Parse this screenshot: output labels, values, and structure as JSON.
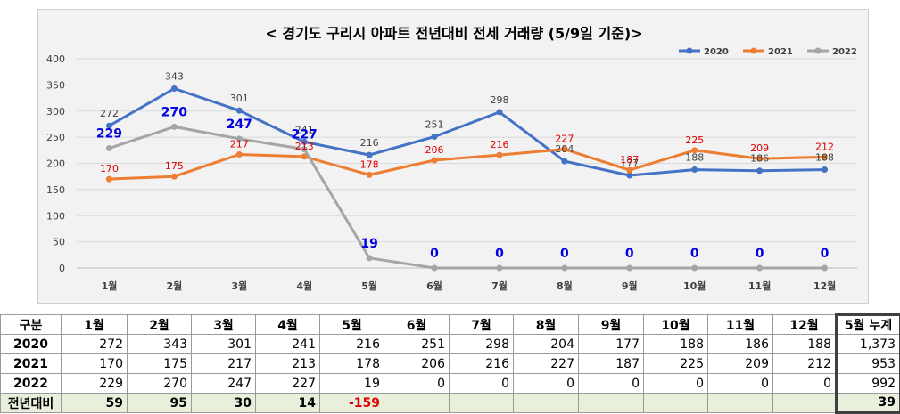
{
  "chart_data": {
    "type": "line",
    "title": "< 경기도 구리시  아파트 전년대비 전세 거래량 (5/9일 기준)>",
    "categories": [
      "1월",
      "2월",
      "3월",
      "4월",
      "5월",
      "6월",
      "7월",
      "8월",
      "9월",
      "10월",
      "11월",
      "12월"
    ],
    "ylim": [
      0,
      400
    ],
    "yticks": [
      "0",
      "50",
      "100",
      "150",
      "200",
      "250",
      "300",
      "350",
      "400"
    ],
    "grid": true,
    "legend_position": "top-right",
    "series": [
      {
        "name": "2020",
        "color": "#4472c4",
        "values": [
          272,
          343,
          301,
          241,
          216,
          251,
          298,
          204,
          177,
          188,
          186,
          188
        ],
        "labels": [
          "272",
          "343",
          "301",
          "241",
          "216",
          "251",
          "298",
          "204",
          "177",
          "188",
          "186",
          "188"
        ]
      },
      {
        "name": "2021",
        "color": "#ed7d31",
        "values": [
          170,
          175,
          217,
          213,
          178,
          206,
          216,
          227,
          187,
          225,
          209,
          212
        ],
        "labels": [
          "170",
          "175",
          "217",
          "213",
          "178",
          "206",
          "216",
          "227",
          "187",
          "225",
          "209",
          "212"
        ]
      },
      {
        "name": "2022",
        "color": "#a5a5a5",
        "values": [
          229,
          270,
          247,
          227,
          19,
          0,
          0,
          0,
          0,
          0,
          0,
          0
        ],
        "labels": [
          "229",
          "270",
          "247",
          "227",
          "19",
          "0",
          "0",
          "0",
          "0",
          "0",
          "0",
          "0"
        ]
      }
    ]
  },
  "table": {
    "header": [
      "구분",
      "1월",
      "2월",
      "3월",
      "4월",
      "5월",
      "6월",
      "7월",
      "8월",
      "9월",
      "10월",
      "11월",
      "12월",
      "5월 누계"
    ],
    "rows": [
      {
        "label": "2020",
        "cells": [
          "272",
          "343",
          "301",
          "241",
          "216",
          "251",
          "298",
          "204",
          "177",
          "188",
          "186",
          "188"
        ],
        "total": "1,373"
      },
      {
        "label": "2021",
        "cells": [
          "170",
          "175",
          "217",
          "213",
          "178",
          "206",
          "216",
          "227",
          "187",
          "225",
          "209",
          "212"
        ],
        "total": "953"
      },
      {
        "label": "2022",
        "cells": [
          "229",
          "270",
          "247",
          "227",
          "19",
          "0",
          "0",
          "0",
          "0",
          "0",
          "0",
          "0"
        ],
        "total": "992"
      }
    ],
    "diff": {
      "label": "전년대비",
      "cells": [
        "59",
        "95",
        "30",
        "14",
        "-159",
        "",
        "",
        "",
        "",
        "",
        "",
        ""
      ],
      "total": "39"
    }
  }
}
